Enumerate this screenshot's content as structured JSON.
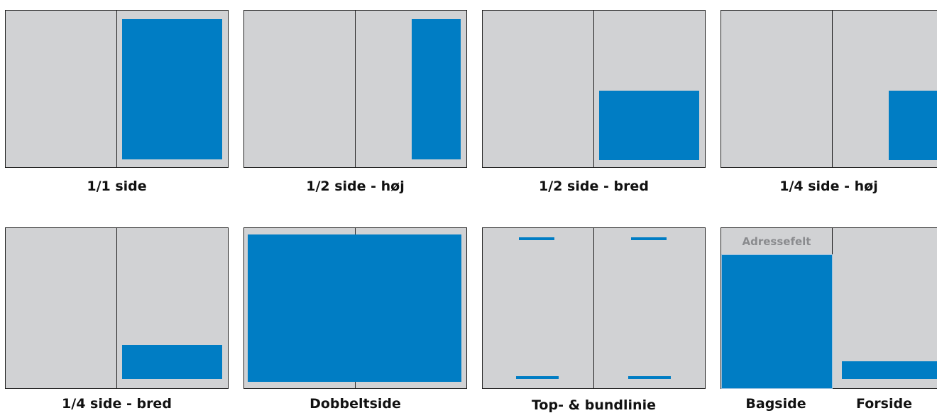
{
  "accent_color": "#007dc4",
  "page_color": "#d1d2d4",
  "formats": [
    {
      "label": "1/1 side"
    },
    {
      "label": "1/2 side - høj"
    },
    {
      "label": "1/2 side - bred"
    },
    {
      "label": "1/4 side - høj"
    },
    {
      "label": "1/4 side - bred"
    },
    {
      "label": "Dobbeltside"
    },
    {
      "label": "Top- & bundlinie"
    },
    {
      "label": "Bagside",
      "label2": "Forside",
      "address_label": "Adressefelt"
    }
  ]
}
